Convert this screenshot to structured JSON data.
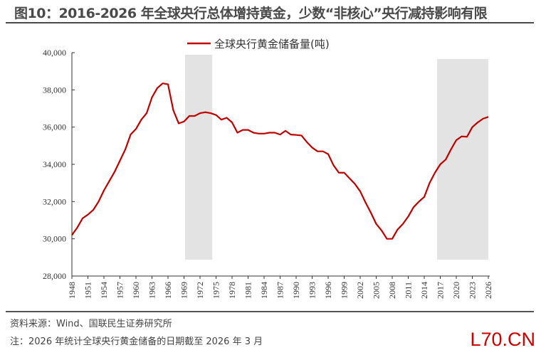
{
  "title": "图10：2016-2026 年全球央行总体增持黄金，少数“非核心”央行减持影响有限",
  "source": "资料来源：Wind、国联民生证券研究所",
  "note": "注：2026 年统计全球央行黄金储备的日期截至 2026 年 3 月",
  "watermark": "L70.CN",
  "chart_data": {
    "type": "line",
    "title": "",
    "xlabel": "",
    "ylabel": "",
    "ylim": [
      28000,
      40000
    ],
    "xlim": [
      1948,
      2026
    ],
    "y_ticks": [
      "28,000",
      "30,000",
      "32,000",
      "34,000",
      "36,000",
      "38,000",
      "40,000"
    ],
    "x_ticks": [
      "1948",
      "1951",
      "1954",
      "1957",
      "1960",
      "1963",
      "1966",
      "1969",
      "1972",
      "1975",
      "1978",
      "1981",
      "1984",
      "1987",
      "1990",
      "1993",
      "1996",
      "1999",
      "2002",
      "2005",
      "2008",
      "2011",
      "2014",
      "2017",
      "2020",
      "2023",
      "2026"
    ],
    "grid": false,
    "legend_position": "top-center",
    "shaded_ranges": [
      [
        1969.2,
        1974.3
      ],
      [
        2016.4,
        2026
      ]
    ],
    "shade_color": "#e3e3e3",
    "series": [
      {
        "name": "全球央行黄金储备量(吨)",
        "color": "#c00000",
        "x": [
          1948,
          1949,
          1950,
          1951,
          1952,
          1953,
          1954,
          1955,
          1956,
          1957,
          1958,
          1959,
          1960,
          1961,
          1962,
          1963,
          1964,
          1965,
          1966,
          1967,
          1968,
          1969,
          1970,
          1971,
          1972,
          1973,
          1974,
          1975,
          1976,
          1977,
          1978,
          1979,
          1980,
          1981,
          1982,
          1983,
          1984,
          1985,
          1986,
          1987,
          1988,
          1989,
          1990,
          1991,
          1992,
          1993,
          1994,
          1995,
          1996,
          1997,
          1998,
          1999,
          2000,
          2001,
          2002,
          2003,
          2004,
          2005,
          2006,
          2007,
          2008,
          2009,
          2010,
          2011,
          2012,
          2013,
          2014,
          2015,
          2016,
          2017,
          2018,
          2019,
          2020,
          2021,
          2022,
          2023,
          2024,
          2025,
          2026
        ],
        "values": [
          30200,
          30600,
          31100,
          31300,
          31550,
          32000,
          32600,
          33100,
          33600,
          34200,
          34800,
          35600,
          35900,
          36400,
          36750,
          37600,
          38100,
          38350,
          38300,
          36900,
          36200,
          36300,
          36600,
          36600,
          36750,
          36800,
          36750,
          36650,
          36400,
          36500,
          36250,
          35700,
          35850,
          35850,
          35700,
          35650,
          35650,
          35700,
          35700,
          35600,
          35800,
          35600,
          35580,
          35550,
          35200,
          34900,
          34700,
          34700,
          34550,
          33950,
          33550,
          33550,
          33250,
          32950,
          32550,
          31950,
          31400,
          30800,
          30450,
          30000,
          30000,
          30500,
          30800,
          31200,
          31700,
          32000,
          32250,
          33000,
          33550,
          34000,
          34250,
          34800,
          35300,
          35500,
          35480,
          36000,
          36250,
          36450,
          36550
        ]
      }
    ]
  }
}
